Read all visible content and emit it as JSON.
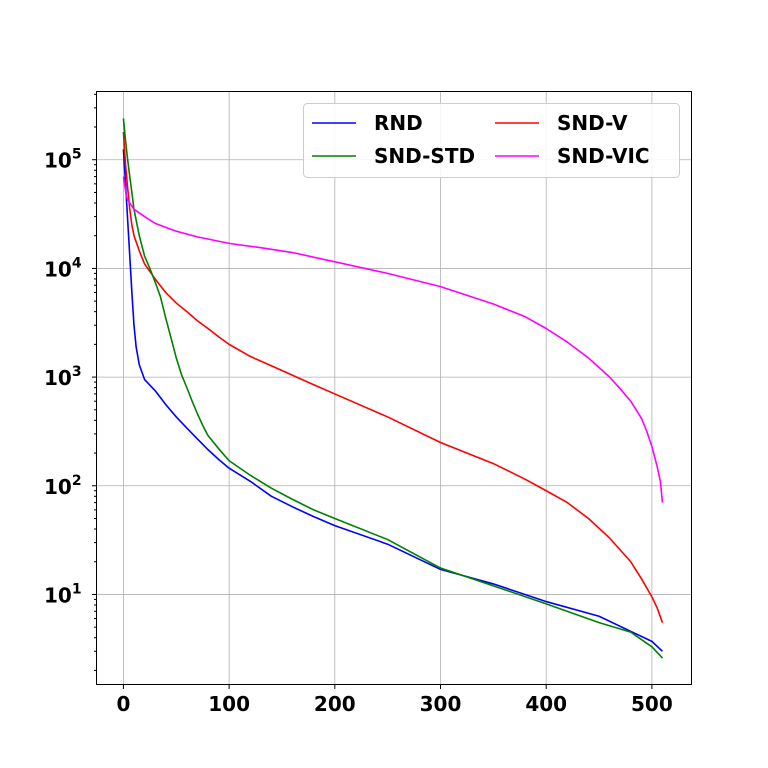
{
  "chart_data": {
    "type": "line",
    "title": "",
    "xlabel": "",
    "ylabel": "",
    "xscale": "linear",
    "yscale": "log",
    "xlim": [
      -25,
      537
    ],
    "ylim": [
      1.5,
      420000
    ],
    "grid": true,
    "legend_position": "top-right",
    "legend_columns": 2,
    "x_ticks": [
      {
        "value": 0,
        "label": "0"
      },
      {
        "value": 100,
        "label": "100"
      },
      {
        "value": 200,
        "label": "200"
      },
      {
        "value": 300,
        "label": "300"
      },
      {
        "value": 400,
        "label": "400"
      },
      {
        "value": 500,
        "label": "500"
      }
    ],
    "y_ticks": [
      {
        "value": 10,
        "base": "10",
        "exponent": "1"
      },
      {
        "value": 100,
        "base": "10",
        "exponent": "2"
      },
      {
        "value": 1000,
        "base": "10",
        "exponent": "3"
      },
      {
        "value": 10000,
        "base": "10",
        "exponent": "4"
      },
      {
        "value": 100000,
        "base": "10",
        "exponent": "5"
      }
    ],
    "series": [
      {
        "name": "RND",
        "color": "#0000ff",
        "points": [
          [
            0,
            125000
          ],
          [
            2,
            60000
          ],
          [
            4,
            28000
          ],
          [
            6,
            13000
          ],
          [
            8,
            6000
          ],
          [
            10,
            3000
          ],
          [
            12,
            1900
          ],
          [
            15,
            1300
          ],
          [
            20,
            950
          ],
          [
            30,
            750
          ],
          [
            40,
            560
          ],
          [
            50,
            430
          ],
          [
            60,
            340
          ],
          [
            70,
            270
          ],
          [
            80,
            215
          ],
          [
            90,
            175
          ],
          [
            100,
            145
          ],
          [
            120,
            110
          ],
          [
            140,
            80
          ],
          [
            160,
            64
          ],
          [
            180,
            52
          ],
          [
            200,
            43
          ],
          [
            250,
            29
          ],
          [
            300,
            17
          ],
          [
            350,
            12.5
          ],
          [
            400,
            8.6
          ],
          [
            450,
            6.3
          ],
          [
            500,
            3.7
          ],
          [
            510,
            3.0
          ]
        ]
      },
      {
        "name": "SND-V",
        "color": "#ff0000",
        "points": [
          [
            0,
            180000
          ],
          [
            2,
            90000
          ],
          [
            4,
            55000
          ],
          [
            6,
            35000
          ],
          [
            8,
            25000
          ],
          [
            10,
            20000
          ],
          [
            15,
            14500
          ],
          [
            20,
            11000
          ],
          [
            30,
            8000
          ],
          [
            40,
            6000
          ],
          [
            50,
            4800
          ],
          [
            60,
            4000
          ],
          [
            70,
            3300
          ],
          [
            80,
            2800
          ],
          [
            90,
            2350
          ],
          [
            100,
            2000
          ],
          [
            120,
            1550
          ],
          [
            150,
            1150
          ],
          [
            180,
            850
          ],
          [
            200,
            700
          ],
          [
            250,
            430
          ],
          [
            300,
            250
          ],
          [
            350,
            160
          ],
          [
            380,
            115
          ],
          [
            400,
            90
          ],
          [
            420,
            70
          ],
          [
            440,
            50
          ],
          [
            460,
            33
          ],
          [
            480,
            20
          ],
          [
            490,
            14
          ],
          [
            500,
            9.5
          ],
          [
            505,
            7.5
          ],
          [
            510,
            5.5
          ]
        ]
      },
      {
        "name": "SND-STD",
        "color": "#008000",
        "points": [
          [
            0,
            240000
          ],
          [
            2,
            150000
          ],
          [
            4,
            100000
          ],
          [
            6,
            70000
          ],
          [
            8,
            50000
          ],
          [
            10,
            35000
          ],
          [
            15,
            20000
          ],
          [
            20,
            13000
          ],
          [
            25,
            10000
          ],
          [
            30,
            7500
          ],
          [
            35,
            5500
          ],
          [
            40,
            3500
          ],
          [
            45,
            2300
          ],
          [
            50,
            1500
          ],
          [
            55,
            1050
          ],
          [
            60,
            800
          ],
          [
            65,
            600
          ],
          [
            70,
            460
          ],
          [
            75,
            360
          ],
          [
            80,
            290
          ],
          [
            90,
            220
          ],
          [
            100,
            170
          ],
          [
            120,
            125
          ],
          [
            140,
            95
          ],
          [
            160,
            75
          ],
          [
            180,
            60
          ],
          [
            200,
            50
          ],
          [
            250,
            32
          ],
          [
            300,
            17.5
          ],
          [
            350,
            12
          ],
          [
            400,
            8.2
          ],
          [
            450,
            5.5
          ],
          [
            480,
            4.5
          ],
          [
            500,
            3.3
          ],
          [
            510,
            2.6
          ]
        ]
      },
      {
        "name": "SND-VIC",
        "color": "#ff00ff",
        "points": [
          [
            0,
            70000
          ],
          [
            3,
            45000
          ],
          [
            6,
            40000
          ],
          [
            10,
            35000
          ],
          [
            20,
            30000
          ],
          [
            30,
            26000
          ],
          [
            50,
            22000
          ],
          [
            70,
            19500
          ],
          [
            100,
            17000
          ],
          [
            130,
            15500
          ],
          [
            160,
            14000
          ],
          [
            200,
            11500
          ],
          [
            250,
            9000
          ],
          [
            300,
            6800
          ],
          [
            350,
            4700
          ],
          [
            380,
            3600
          ],
          [
            400,
            2800
          ],
          [
            420,
            2100
          ],
          [
            440,
            1500
          ],
          [
            460,
            1000
          ],
          [
            470,
            780
          ],
          [
            480,
            600
          ],
          [
            490,
            420
          ],
          [
            495,
            320
          ],
          [
            500,
            230
          ],
          [
            505,
            150
          ],
          [
            508,
            110
          ],
          [
            510,
            70
          ]
        ]
      }
    ]
  }
}
